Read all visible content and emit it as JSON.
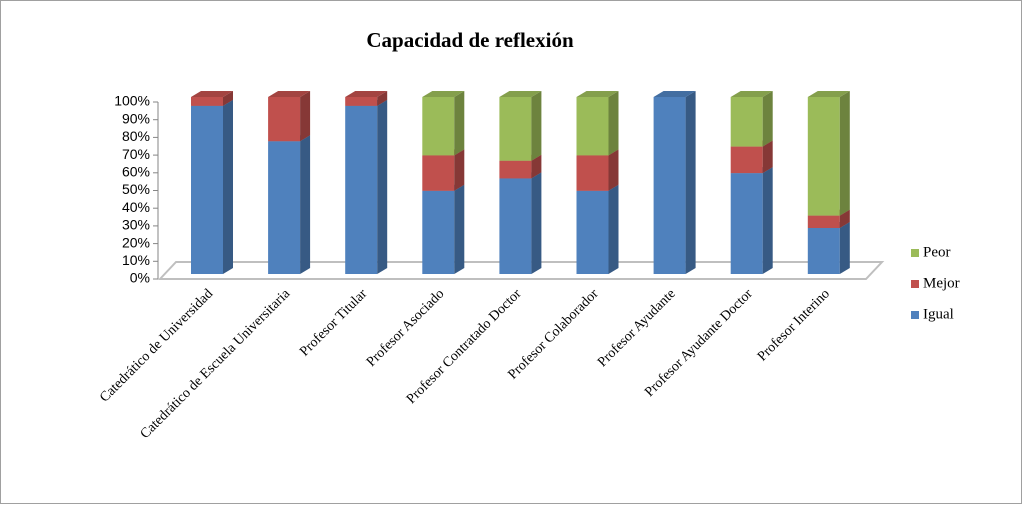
{
  "chart_data": {
    "type": "bar",
    "stacked": true,
    "title": "Capacidad de reflexión",
    "categories": [
      "Catedrático de Universidad",
      "Catedrático de Escuela Universitaria",
      "Profesor Titular",
      "Profesor Asociado",
      "Profesor Contratado Doctor",
      "Profesor Colaborador",
      "Profesor Ayudante",
      "Profesor Ayudante Doctor",
      "Profesor Interino"
    ],
    "series": [
      {
        "name": "Igual",
        "color": "#4f81bd",
        "values": [
          95,
          75,
          95,
          47,
          54,
          47,
          100,
          57,
          26
        ]
      },
      {
        "name": "Mejor",
        "color": "#c0504d",
        "values": [
          5,
          25,
          5,
          20,
          10,
          20,
          0,
          15,
          7
        ]
      },
      {
        "name": "Peor",
        "color": "#9bbb59",
        "values": [
          0,
          0,
          0,
          33,
          36,
          33,
          0,
          28,
          67
        ]
      }
    ],
    "ylim": [
      0,
      100
    ],
    "yticks": [
      {
        "value": 0,
        "label": "0%"
      },
      {
        "value": 10,
        "label": "10%"
      },
      {
        "value": 20,
        "label": "20%"
      },
      {
        "value": 30,
        "label": "30%"
      },
      {
        "value": 40,
        "label": "40%"
      },
      {
        "value": 50,
        "label": "50%"
      },
      {
        "value": 60,
        "label": "60%"
      },
      {
        "value": 70,
        "label": "70%"
      },
      {
        "value": 80,
        "label": "80%"
      },
      {
        "value": 90,
        "label": "90%"
      },
      {
        "value": 100,
        "label": "100%"
      }
    ],
    "legend": "right"
  }
}
